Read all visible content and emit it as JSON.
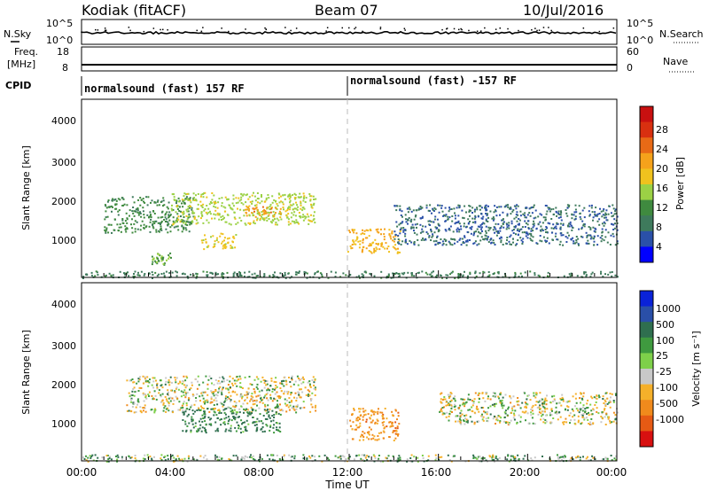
{
  "header": {
    "station": "Kodiak (fitACF)",
    "beam": "Beam 07",
    "date": "10/Jul/2016"
  },
  "side_labels": {
    "nsky": "N.Sky",
    "freq_line1": "Freq.",
    "freq_line2": "[MHz]",
    "cpid": "CPID",
    "nsearch": "N.Search",
    "nave": "Nave",
    "ten_pow5_left": "10^5",
    "ten_pow0_left": "10^0",
    "ten_pow5_right": "10^5",
    "ten_pow0_right": "10^0"
  },
  "freq_ticks": [
    "18",
    "8"
  ],
  "nave_ticks": [
    "60",
    "0"
  ],
  "cpid_segments": [
    {
      "label": "normalsound (fast) 157 RF",
      "start_hour": 0
    },
    {
      "label": "normalsound (fast) -157 RF",
      "start_hour": 12
    }
  ],
  "x_axis": {
    "label": "Time UT",
    "ticks": [
      "00:00",
      "04:00",
      "08:00",
      "12:00",
      "16:00",
      "20:00",
      "00:00"
    ]
  },
  "panels": {
    "power": {
      "ylabel": "Slant Range [km]",
      "yticks": [
        "4000",
        "3000",
        "2000",
        "1000"
      ],
      "colorbar_label": "Power [dB]",
      "colorbar_ticks": [
        "28",
        "24",
        "20",
        "16",
        "12",
        "8",
        "4"
      ]
    },
    "velocity": {
      "ylabel": "Slant Range [km]",
      "yticks": [
        "4000",
        "3000",
        "2000",
        "1000"
      ],
      "colorbar_label": "Velocity [m s⁻¹]",
      "colorbar_ticks": [
        "1000",
        "500",
        "100",
        "25",
        "-25",
        "-100",
        "-500",
        "-1000"
      ]
    }
  },
  "colors": {
    "power_scale": [
      "#0000ff",
      "#2a50a8",
      "#3e7a5c",
      "#3f8a3f",
      "#9bd145",
      "#f0c21e",
      "#f5a21b",
      "#e86a16",
      "#d83010",
      "#c81010"
    ],
    "velocity_scale": [
      "#0a22d8",
      "#2a4fa8",
      "#2f6f4f",
      "#3f9a3f",
      "#7ed04a",
      "#c8c8c8",
      "#f5b02a",
      "#f08a1c",
      "#e65a14",
      "#d81010"
    ]
  },
  "chart_data": [
    {
      "type": "heatmap",
      "title": "Power",
      "xlabel": "Time UT",
      "ylabel": "Slant Range [km]",
      "x_range_hours": [
        0,
        24
      ],
      "ylim": [
        180,
        4600
      ],
      "zlabel": "Power [dB]",
      "zlim": [
        0,
        30
      ],
      "features": [
        {
          "t_start": 1.0,
          "t_end": 5.0,
          "range_km": [
            1300,
            2200
          ],
          "value": 10
        },
        {
          "t_start": 4.0,
          "t_end": 10.5,
          "range_km": [
            1500,
            2300
          ],
          "value": 14
        },
        {
          "t_start": 7.3,
          "t_end": 8.9,
          "range_km": [
            1700,
            1950
          ],
          "value": 20
        },
        {
          "t_start": 5.3,
          "t_end": 6.9,
          "range_km": [
            900,
            1300
          ],
          "value": 16
        },
        {
          "t_start": 3.1,
          "t_end": 4.0,
          "range_km": [
            500,
            800
          ],
          "value": 12
        },
        {
          "t_start": 11.9,
          "t_end": 14.3,
          "range_km": [
            800,
            1400
          ],
          "value": 18
        },
        {
          "t_start": 14.0,
          "t_end": 24.0,
          "range_km": [
            1000,
            2000
          ],
          "value": 6
        },
        {
          "t_start": 0.0,
          "t_end": 24.0,
          "range_km": [
            180,
            350
          ],
          "value": 8
        }
      ]
    },
    {
      "type": "heatmap",
      "title": "Velocity",
      "xlabel": "Time UT",
      "ylabel": "Slant Range [km]",
      "x_range_hours": [
        0,
        24
      ],
      "ylim": [
        180,
        4600
      ],
      "zlabel": "Velocity [m s⁻¹]",
      "zlim": [
        -1000,
        1000
      ],
      "features": [
        {
          "t_start": 2.0,
          "t_end": 10.5,
          "range_km": [
            1400,
            2300
          ],
          "value": 0
        },
        {
          "t_start": 4.5,
          "t_end": 8.9,
          "range_km": [
            900,
            1500
          ],
          "value": 150
        },
        {
          "t_start": 12.0,
          "t_end": 14.2,
          "range_km": [
            700,
            1500
          ],
          "value": -150
        },
        {
          "t_start": 16.0,
          "t_end": 24.0,
          "range_km": [
            1100,
            1900
          ],
          "value": 0
        },
        {
          "t_start": 0.0,
          "t_end": 24.0,
          "range_km": [
            180,
            350
          ],
          "value": 60
        }
      ]
    }
  ]
}
